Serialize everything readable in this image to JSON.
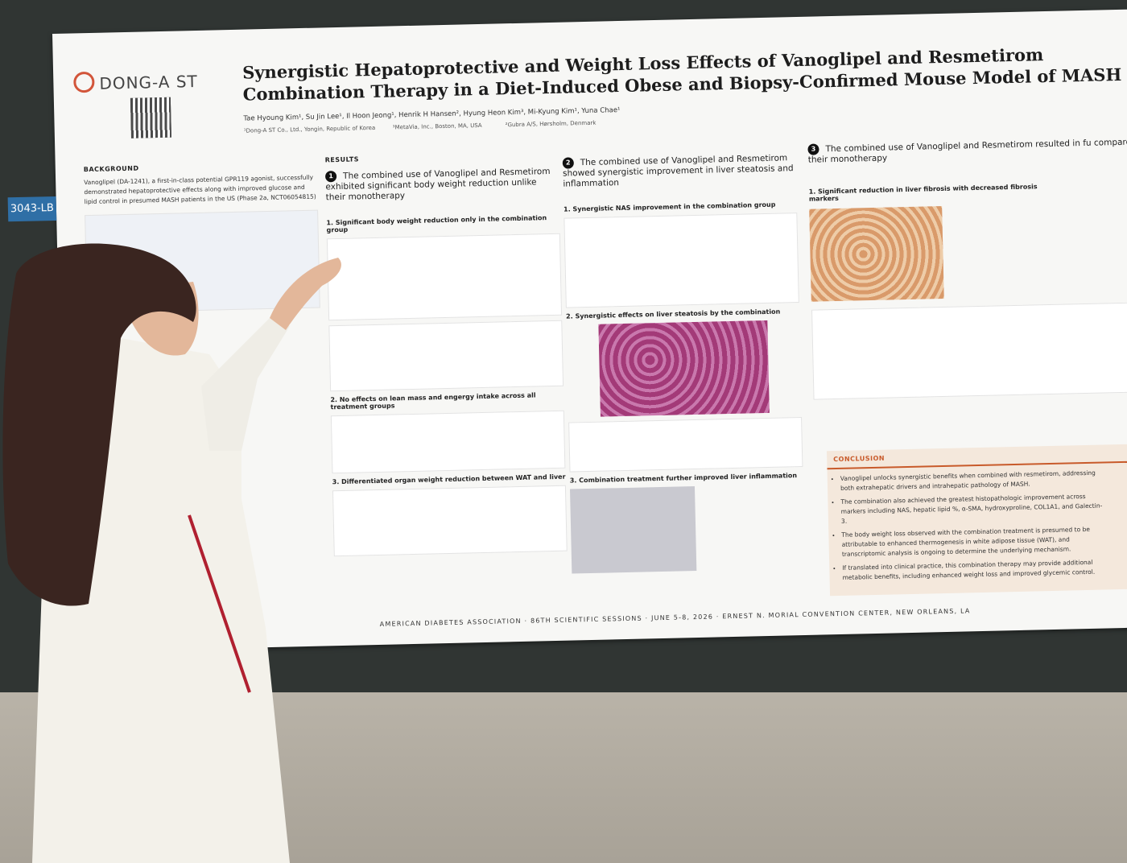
{
  "poster": {
    "logo": "DONG-A ST",
    "title": "Synergistic Hepatoprotective and Weight Loss Effects of Vanoglipel and Resmetirom Combination Therapy in a Diet-Induced Obese and Biopsy-Confirmed Mouse Model of MASH",
    "authors": "Tae Hyoung Kim¹, Su Jin Lee¹, Il Hoon Jeong¹, Henrik H Hansen², Hyung Heon Kim³, Mi-Kyung Kim¹, Yuna Chae¹",
    "affiliations": [
      "¹Dong-A ST Co., Ltd., Yongin, Republic of Korea",
      "³MetaVia, Inc., Boston, MA, USA",
      "²Gubra A/S, Hørsholm, Denmark"
    ],
    "board_number": "3043-LB",
    "background": {
      "heading": "BACKGROUND",
      "text": "Vanoglipel (DA-1241), a first-in-class potential GPR119 agonist, successfully demonstrated hepatoprotective effects along with improved glucose and lipid control in presumed MASH patients in the US (Phase 2a, NCT06054815)"
    },
    "results_heading": "RESULTS",
    "sections": [
      {
        "number": "1",
        "heading": "The combined use of Vanoglipel and Resmetirom exhibited significant body weight reduction unlike their monotherapy",
        "panels": [
          "1. Significant body weight reduction only in the combination group",
          "2. No effects on lean mass and engergy intake across all treatment groups",
          "3. Differentiated organ weight reduction between WAT and liver"
        ]
      },
      {
        "number": "2",
        "heading": "The combined use of Vanoglipel and Resmetirom showed synergistic improvement in liver steatosis and inflammation",
        "panels": [
          "1. Synergistic NAS improvement in the combination group",
          "2. Synergistic effects on liver steatosis by the combination",
          "3. Combination treatment further improved liver inflammation"
        ]
      },
      {
        "number": "3",
        "heading": "The combined use of Vanoglipel and Resmetirom resulted in fu compared with their monotherapy",
        "panels": [
          "1. Significant reduction in liver fibrosis with decreased fibrosis markers"
        ]
      }
    ],
    "conclusion": {
      "heading": "CONCLUSION",
      "items": [
        "Vanoglipel unlocks synergistic benefits when combined with resmetirom, addressing both extrahepatic drivers and intrahepatic pathology of MASH.",
        "The combination also achieved the greatest histopathologic improvement across markers including NAS, hepatic lipid %, α-SMA, hydroxyproline, COL1A1, and Galectin-3.",
        "The body weight loss observed with the combination treatment is presumed to be attributable to enhanced thermogenesis in white adipose tissue (WAT), and transcriptomic analysis is ongoing to determine the underlying mechanism.",
        "If translated into clinical practice, this combination therapy may provide additional metabolic benefits, including enhanced weight loss and improved glycemic control."
      ]
    },
    "footer": "AMERICAN DIABETES ASSOCIATION · 86TH SCIENTIFIC SESSIONS · JUNE 5-8, 2026 · ERNEST N. MORIAL CONVENTION CENTER, NEW ORLEANS, LA"
  }
}
